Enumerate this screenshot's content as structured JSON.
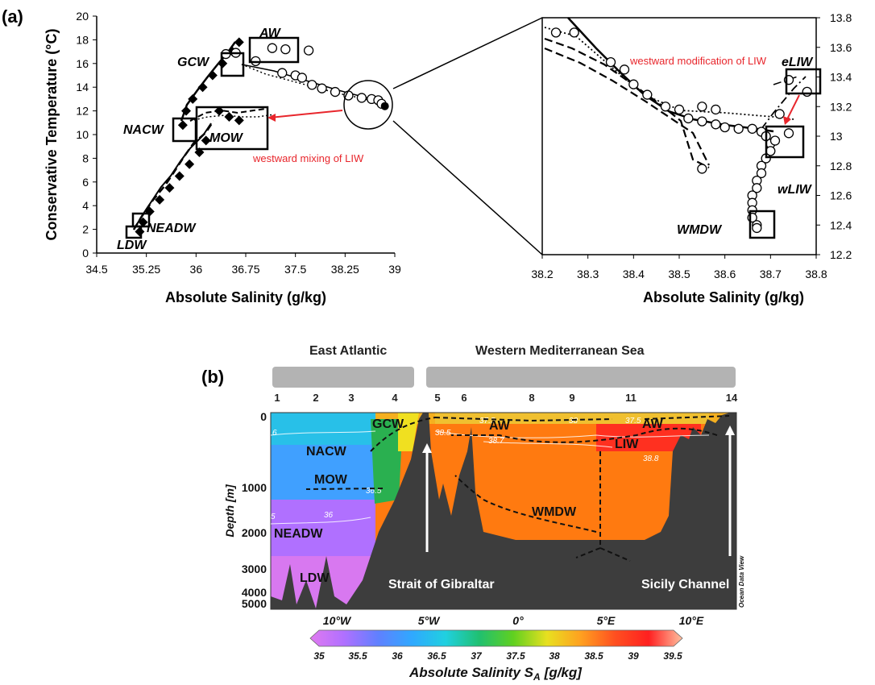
{
  "panels": {
    "a": "(a)",
    "b": "(b)"
  },
  "chart_data": [
    {
      "type": "scatter",
      "panel": "(a)",
      "xlabel": "Absolute Salinity (g/kg)",
      "ylabel": "Conservative Temperature (°C)",
      "xlim": [
        34.5,
        39
      ],
      "ylim": [
        0,
        20
      ],
      "xticks": [
        "34.5",
        "35.25",
        "36",
        "36.75",
        "37.5",
        "38.25",
        "39"
      ],
      "yticks": [
        "0",
        "2",
        "4",
        "6",
        "8",
        "10",
        "12",
        "14",
        "16",
        "18",
        "20"
      ],
      "grid": false,
      "series": [
        {
          "marker": "filled-diamond",
          "points": [
            [
              35.15,
              1.8
            ],
            [
              35.2,
              2.6
            ],
            [
              35.3,
              3.5
            ],
            [
              35.45,
              4.5
            ],
            [
              35.6,
              5.5
            ],
            [
              35.75,
              6.5
            ],
            [
              35.9,
              7.5
            ],
            [
              36.05,
              8.5
            ],
            [
              36.15,
              9.5
            ],
            [
              35.8,
              10.8
            ],
            [
              35.85,
              12.0
            ],
            [
              35.95,
              13.0
            ],
            [
              36.1,
              14.0
            ],
            [
              36.25,
              15.0
            ],
            [
              36.4,
              16.0
            ],
            [
              36.55,
              17.0
            ],
            [
              36.65,
              17.8
            ],
            [
              36.35,
              12.0
            ],
            [
              36.5,
              11.5
            ],
            [
              36.65,
              11.2
            ]
          ]
        },
        {
          "marker": "open-circle",
          "points": [
            [
              36.45,
              16.8
            ],
            [
              36.6,
              16.9
            ],
            [
              36.9,
              16.2
            ],
            [
              37.15,
              17.3
            ],
            [
              37.3,
              15.2
            ],
            [
              37.5,
              15.0
            ],
            [
              37.6,
              14.8
            ],
            [
              37.75,
              14.2
            ],
            [
              37.9,
              13.9
            ],
            [
              38.1,
              13.6
            ],
            [
              38.3,
              13.3
            ],
            [
              38.5,
              13.1
            ],
            [
              38.65,
              13.0
            ],
            [
              38.75,
              12.9
            ],
            [
              38.8,
              12.6
            ],
            [
              37.7,
              17.1
            ],
            [
              37.35,
              17.2
            ]
          ]
        }
      ],
      "water_masses": [
        "AW",
        "GCW",
        "NACW",
        "MOW",
        "NEADW",
        "LDW"
      ],
      "annotation": "westward mixing of LIW"
    },
    {
      "type": "scatter",
      "panel": "(a) zoom",
      "xlabel": "Absolute Salinity (g/kg)",
      "xlim": [
        38.2,
        38.8
      ],
      "ylim": [
        12.2,
        13.8
      ],
      "xticks": [
        "38.2",
        "38.3",
        "38.4",
        "38.5",
        "38.6",
        "38.7",
        "38.8"
      ],
      "yticks": [
        "12.2",
        "12.4",
        "12.6",
        "12.8",
        "13",
        "13.2",
        "13.4",
        "13.6",
        "13.8"
      ],
      "grid": false,
      "series": [
        {
          "marker": "open-circle",
          "points": [
            [
              38.23,
              13.7
            ],
            [
              38.27,
              13.7
            ],
            [
              38.35,
              13.5
            ],
            [
              38.38,
              13.45
            ],
            [
              38.4,
              13.35
            ],
            [
              38.43,
              13.28
            ],
            [
              38.47,
              13.2
            ],
            [
              38.5,
              13.18
            ],
            [
              38.52,
              13.12
            ],
            [
              38.55,
              13.1
            ],
            [
              38.58,
              13.08
            ],
            [
              38.6,
              13.06
            ],
            [
              38.63,
              13.05
            ],
            [
              38.66,
              13.05
            ],
            [
              38.68,
              13.03
            ],
            [
              38.69,
              13.0
            ],
            [
              38.7,
              12.95
            ],
            [
              38.7,
              12.9
            ],
            [
              38.69,
              12.85
            ],
            [
              38.68,
              12.8
            ],
            [
              38.68,
              12.75
            ],
            [
              38.67,
              12.7
            ],
            [
              38.67,
              12.65
            ],
            [
              38.66,
              12.6
            ],
            [
              38.66,
              12.55
            ],
            [
              38.66,
              12.5
            ],
            [
              38.66,
              12.45
            ],
            [
              38.67,
              12.4
            ],
            [
              38.67,
              12.38
            ],
            [
              38.74,
              13.38
            ],
            [
              38.72,
              13.15
            ],
            [
              38.78,
              13.3
            ],
            [
              38.55,
              13.2
            ],
            [
              38.58,
              13.18
            ],
            [
              38.55,
              12.78
            ],
            [
              38.74,
              13.02
            ],
            [
              38.71,
              12.97
            ]
          ]
        }
      ],
      "water_masses": [
        "eLIW",
        "wLIW",
        "WMDW"
      ],
      "annotation": "westward modification of LIW"
    },
    {
      "type": "heatmap",
      "panel": "(b)",
      "ylabel": "Depth [m]",
      "yticks": [
        "0",
        "1000",
        "2000",
        "3000",
        "4000",
        "5000"
      ],
      "xticks": [
        "10°W",
        "5°W",
        "0°",
        "5°E",
        "10°E"
      ],
      "regions": [
        "East Atlantic",
        "Western Mediterranean Sea"
      ],
      "stations": [
        "1",
        "2",
        "3",
        "4",
        "5",
        "6",
        "8",
        "9",
        "11",
        "14"
      ],
      "water_masses": [
        "GCW",
        "AW",
        "AW",
        "NACW",
        "LIW",
        "MOW",
        "WMDW",
        "NEADW",
        "LDW"
      ],
      "places": [
        "Strait of Gibraltar",
        "Sicily Channel"
      ],
      "contour_labels": [
        "6",
        "38.5",
        "38.7",
        "38.8",
        "36.5",
        "36",
        "5",
        "37.5",
        "38",
        "37.5"
      ],
      "watermark": "Ocean Data View",
      "colorbar": {
        "label": "Absolute Salinity S",
        "label_sub": "A",
        "label_unit": "[g/kg]",
        "ticks": [
          "35",
          "35.5",
          "36",
          "36.5",
          "37",
          "37.5",
          "38",
          "38.5",
          "39",
          "39.5"
        ],
        "colors": [
          "#e07af0",
          "#b070ff",
          "#6080ff",
          "#30a8ff",
          "#20d0e0",
          "#20c070",
          "#60d020",
          "#e8e020",
          "#ffa020",
          "#ff5020",
          "#ff2020",
          "#ffc0a0"
        ]
      }
    }
  ]
}
